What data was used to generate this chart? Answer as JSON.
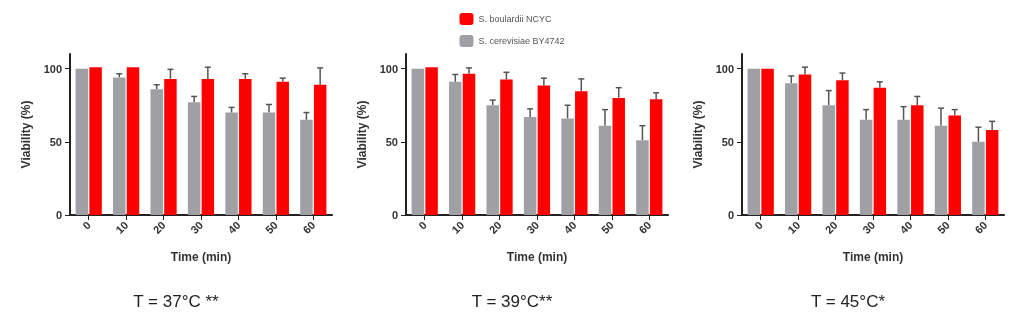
{
  "chart_data": [
    {
      "type": "bar",
      "title": "T = 37°C **",
      "xlabel": "Time (min)",
      "ylabel": "Viability (%)",
      "categories": [
        "0",
        "10",
        "20",
        "30",
        "40",
        "50",
        "60"
      ],
      "ylim": [
        0,
        110
      ],
      "yticks": [
        0,
        50,
        100
      ],
      "grid": false,
      "legend": false,
      "series": [
        {
          "color": "#a0a0a4",
          "values": [
            100,
            94,
            86,
            77,
            70,
            70,
            65
          ],
          "errors": [
            null,
            2.5,
            3,
            4,
            3.5,
            5.5,
            5
          ]
        },
        {
          "color": "#ff0000",
          "values": [
            101,
            101,
            93,
            93,
            93,
            91,
            89
          ],
          "errors": [
            null,
            null,
            6.5,
            8,
            3.5,
            2.5,
            11.5
          ]
        }
      ]
    },
    {
      "type": "bar",
      "title": "T = 39°C**",
      "xlabel": "Time (min)",
      "ylabel": "Viability (%)",
      "categories": [
        "0",
        "10",
        "20",
        "30",
        "40",
        "50",
        "60"
      ],
      "ylim": [
        0,
        110
      ],
      "yticks": [
        0,
        50,
        100
      ],
      "grid": false,
      "legend": "top",
      "series": [
        {
          "name": "S. cerevisiae BY4742",
          "color": "#a0a0a4",
          "values": [
            100,
            91,
            75,
            67,
            66,
            61,
            51
          ],
          "errors": [
            null,
            5,
            3.5,
            5.5,
            9,
            11,
            10
          ]
        },
        {
          "name": "S. boulardii NCYC",
          "color": "#ff0000",
          "values": [
            101,
            96.5,
            92.5,
            88.5,
            84.5,
            80,
            79
          ],
          "errors": [
            null,
            4,
            5,
            5,
            8.5,
            7,
            4.5
          ]
        }
      ]
    },
    {
      "type": "bar",
      "title": "T = 45°C*",
      "xlabel": "Time (min)",
      "ylabel": "Viability (%)",
      "categories": [
        "0",
        "10",
        "20",
        "30",
        "40",
        "50",
        "60"
      ],
      "ylim": [
        0,
        110
      ],
      "yticks": [
        0,
        50,
        100
      ],
      "grid": false,
      "legend": false,
      "series": [
        {
          "color": "#a0a0a4",
          "values": [
            100,
            90,
            75,
            65,
            65,
            61,
            50
          ],
          "errors": [
            null,
            5,
            10,
            7,
            9,
            12,
            10
          ]
        },
        {
          "color": "#ff0000",
          "values": [
            100,
            96,
            92,
            87,
            75,
            68,
            58
          ],
          "errors": [
            null,
            5,
            5,
            4,
            6,
            4,
            6
          ]
        }
      ]
    }
  ]
}
